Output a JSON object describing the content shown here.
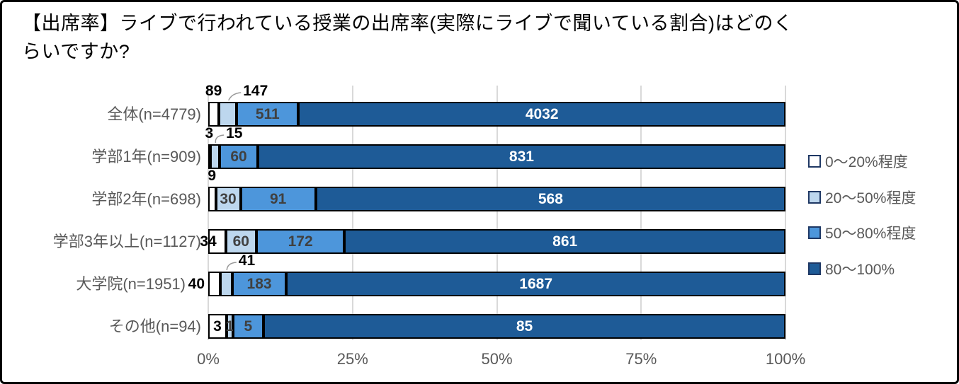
{
  "title": {
    "full": "【出席率】ライブで行われている授業の出席率(実際にライブで聞いている割合)はどのくらいですか?",
    "line1": "【出席率】ライブで行われている授業の出席率(実際にライブで聞いている割合)はどのく",
    "line2": "らいですか?"
  },
  "x_axis": {
    "ticks": [
      "0%",
      "25%",
      "50%",
      "75%",
      "100%"
    ]
  },
  "legend": {
    "position": "right",
    "items": [
      {
        "label": "0〜20%程度",
        "color": "#FFFFFF"
      },
      {
        "label": "20〜50%程度",
        "color": "#BDD7EE"
      },
      {
        "label": "50〜80%程度",
        "color": "#4D96DB"
      },
      {
        "label": "80〜100%",
        "color": "#1E5B97"
      }
    ]
  },
  "chart_data": {
    "type": "bar",
    "subtype": "horizontal-stacked-100pct",
    "title": "【出席率】ライブで行われている授業の出席率(実際にライブで聞いている割合)はどのくらいですか?",
    "categories": [
      "全体(n=4779)",
      "学部1年(n=909)",
      "学部2年(n=698)",
      "学部3年以上(n=1127)",
      "大学院(n=1951)",
      "その他(n=94)"
    ],
    "totals": [
      4779,
      909,
      698,
      1127,
      1951,
      94
    ],
    "series": [
      {
        "name": "0〜20%程度",
        "color": "#FFFFFF",
        "values": [
          89,
          3,
          9,
          34,
          40,
          3
        ]
      },
      {
        "name": "20〜50%程度",
        "color": "#BDD7EE",
        "values": [
          147,
          15,
          30,
          60,
          41,
          1
        ]
      },
      {
        "name": "50〜80%程度",
        "color": "#4D96DB",
        "values": [
          511,
          60,
          91,
          172,
          183,
          5
        ]
      },
      {
        "name": "80〜100%",
        "color": "#1E5B97",
        "values": [
          4032,
          831,
          568,
          861,
          1687,
          85
        ]
      }
    ],
    "x_ticks": [
      "0%",
      "25%",
      "50%",
      "75%",
      "100%"
    ],
    "xlim": [
      0,
      100
    ],
    "grid": "vertical",
    "legend_position": "right",
    "label_colors": [
      "#000000",
      "#404040",
      "#404040",
      "#FFFFFF"
    ],
    "label_placements": [
      [
        "above",
        "above-leader",
        "inside",
        "inside"
      ],
      [
        "above",
        "above-leader",
        "inside",
        "inside"
      ],
      [
        "above",
        "inside",
        "inside",
        "inside"
      ],
      [
        "start",
        "inside",
        "inside",
        "inside"
      ],
      [
        "left",
        "above-leader",
        "inside",
        "inside"
      ],
      [
        "inside",
        "inside",
        "inside",
        "inside"
      ]
    ]
  },
  "colors": {
    "background": "#FFFFFF",
    "frame_border": "#000000",
    "gridline": "#D9D9D9",
    "segment_border": "#000000",
    "axis_text": "#595959",
    "leader_line": "#999999",
    "legend_swatch_border": "#1F3864"
  }
}
